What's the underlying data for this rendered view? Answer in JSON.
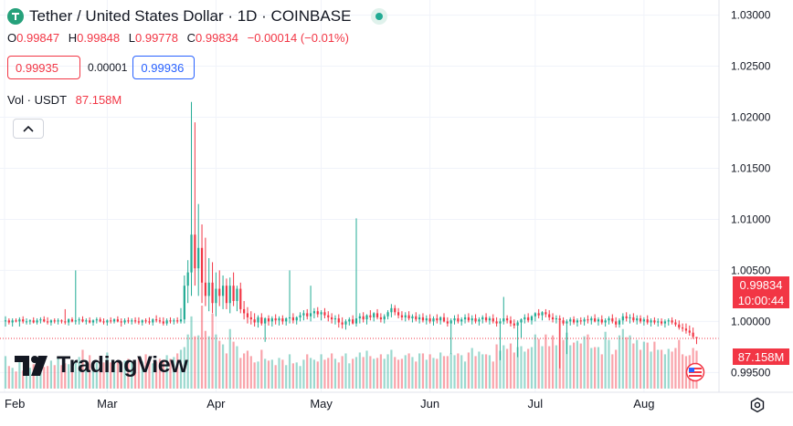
{
  "header": {
    "title": "Tether / United States Dollar · 1D · COINBASE",
    "ohlc": [
      {
        "key": "O",
        "value": "0.99847"
      },
      {
        "key": "H",
        "value": "0.99848"
      },
      {
        "key": "L",
        "value": "0.99778"
      },
      {
        "key": "C",
        "value": "0.99834"
      }
    ],
    "change": "−0.00014 (−0.01%)"
  },
  "quote": {
    "sell": "0.99935",
    "spread": "0.00001",
    "buy": "0.99936"
  },
  "volume_legend": {
    "label": "Vol · USDT",
    "value": "87.158M"
  },
  "badges": {
    "price": "0.99834",
    "countdown": "10:00:44",
    "volume": "87.158M"
  },
  "brand": {
    "name": "TradingView"
  },
  "icons": [
    "tether-logo-icon",
    "live-status-icon",
    "chevron-up-icon",
    "tradingview-logo-icon",
    "us-flag-icon",
    "settings-icon"
  ],
  "colors": {
    "up": "#22ab94",
    "down": "#f23645",
    "buy": "#2962ff",
    "text": "#131722"
  },
  "chart_data": {
    "type": "candlestick",
    "x_tick_labels": [
      "Feb",
      "Mar",
      "Apr",
      "May",
      "Jun",
      "Jul",
      "Aug"
    ],
    "y_tick_labels": [
      "1.03000",
      "1.02500",
      "1.02000",
      "1.01500",
      "1.01000",
      "1.00500",
      "1.00000",
      "0.99500"
    ],
    "ylim": [
      0.9925,
      1.0305
    ],
    "last_price": 0.99834,
    "grid": true,
    "candles": [
      [
        1.0,
        1.0005,
        0.9995,
        1.0001,
        36
      ],
      [
        1.0001,
        1.0003,
        0.9997,
        0.9999,
        25
      ],
      [
        0.9999,
        1.0003,
        0.9995,
        1.0001,
        23
      ],
      [
        1.0001,
        1.0003,
        0.9999,
        1.0,
        19
      ],
      [
        1.0,
        1.0004,
        0.9995,
        1.0002,
        31
      ],
      [
        1.0002,
        1.0005,
        0.9998,
        1.0,
        20
      ],
      [
        1.0,
        1.0003,
        0.9997,
        1.0,
        25
      ],
      [
        1.0,
        1.0002,
        0.9997,
        1.0001,
        23
      ],
      [
        1.0001,
        1.0004,
        0.9998,
        0.9999,
        27
      ],
      [
        0.9999,
        1.0003,
        0.9997,
        1.0001,
        26
      ],
      [
        1.0001,
        1.0004,
        0.9998,
        1.0002,
        28
      ],
      [
        1.0002,
        1.0005,
        0.9999,
        1.0,
        24
      ],
      [
        1.0,
        1.0004,
        0.9997,
        0.9999,
        25
      ],
      [
        0.9999,
        1.0002,
        0.9996,
        1.0001,
        31
      ],
      [
        1.0001,
        1.0003,
        0.9998,
        1.0,
        26
      ],
      [
        1.0,
        1.0003,
        0.9997,
        1.0001,
        34
      ],
      [
        1.0001,
        1.0002,
        0.9998,
        1.0,
        26
      ],
      [
        1.0,
        1.0012,
        0.9997,
        0.9999,
        28
      ],
      [
        0.9999,
        1.0003,
        0.9996,
        1.0002,
        27
      ],
      [
        1.0002,
        1.0004,
        0.9999,
        1.0,
        30
      ],
      [
        1.0,
        1.005,
        0.9997,
        1.0001,
        31
      ],
      [
        1.0001,
        1.0004,
        0.9997,
        1.0002,
        35
      ],
      [
        1.0002,
        1.0005,
        0.9999,
        1.0,
        43
      ],
      [
        1.0,
        1.0003,
        0.9997,
        1.0001,
        29
      ],
      [
        1.0001,
        1.0004,
        0.9998,
        0.9999,
        37
      ],
      [
        0.9999,
        1.0002,
        0.9996,
        1.0001,
        27
      ],
      [
        1.0001,
        1.0004,
        0.9998,
        1.0002,
        29
      ],
      [
        1.0002,
        1.0004,
        0.9999,
        1.0,
        36
      ],
      [
        1.0,
        1.0003,
        0.9997,
        0.9999,
        29
      ],
      [
        0.9999,
        1.0002,
        0.9996,
        1.0001,
        40
      ],
      [
        1.0001,
        1.0004,
        0.9998,
        1.0,
        29
      ],
      [
        1.0,
        1.0003,
        0.9998,
        1.0002,
        30
      ],
      [
        1.0002,
        1.0005,
        0.9999,
        1.0,
        31
      ],
      [
        1.0,
        1.0003,
        0.9995,
        0.9999,
        29
      ],
      [
        0.9999,
        1.0003,
        0.9997,
        1.0001,
        31
      ],
      [
        1.0001,
        1.0004,
        0.9998,
        1.0,
        33
      ],
      [
        1.0,
        1.0003,
        0.9997,
        1.0001,
        30
      ],
      [
        1.0001,
        1.0004,
        0.9998,
        1.0,
        29
      ],
      [
        1.0,
        1.0004,
        0.9997,
        0.9999,
        35
      ],
      [
        0.9999,
        1.0002,
        0.9996,
        1.0001,
        30
      ],
      [
        1.0001,
        1.0003,
        0.9998,
        1.0,
        38
      ],
      [
        1.0,
        1.0004,
        0.9997,
        0.9999,
        34
      ],
      [
        0.9999,
        1.0003,
        0.9996,
        1.0002,
        28
      ],
      [
        1.0002,
        1.0006,
        0.9999,
        1.0001,
        30
      ],
      [
        1.0001,
        1.0004,
        0.9998,
        1.0,
        33
      ],
      [
        1.0,
        1.0004,
        0.9996,
        0.9998,
        32
      ],
      [
        0.9998,
        1.0003,
        0.9996,
        1.0001,
        37
      ],
      [
        1.0001,
        1.0004,
        0.9998,
        1.0,
        33
      ],
      [
        1.0,
        1.0003,
        0.9997,
        1.0001,
        35
      ],
      [
        1.0001,
        1.0004,
        0.9998,
        1.0,
        39
      ],
      [
        1.0,
        1.0013,
        0.9998,
        1.0002,
        43
      ],
      [
        1.0002,
        1.0045,
        0.9998,
        1.0035,
        46
      ],
      [
        1.0035,
        1.006,
        1.0018,
        1.0048,
        60
      ],
      [
        1.0048,
        1.0215,
        1.0025,
        1.0085,
        80
      ],
      [
        1.0085,
        1.0195,
        1.0035,
        1.0052,
        58
      ],
      [
        1.0052,
        1.0115,
        1.0025,
        1.0072,
        59
      ],
      [
        1.0072,
        1.0095,
        1.0018,
        1.0038,
        92
      ],
      [
        1.0038,
        1.0082,
        1.0015,
        1.0025,
        64
      ],
      [
        1.0025,
        1.0062,
        1.001,
        1.0038,
        58
      ],
      [
        1.0038,
        1.0058,
        1.0008,
        1.0018,
        83
      ],
      [
        1.0018,
        1.0048,
        1.0005,
        1.0032,
        60
      ],
      [
        1.0032,
        1.005,
        1.0015,
        1.0025,
        53
      ],
      [
        1.0025,
        1.0045,
        1.0012,
        1.0035,
        49
      ],
      [
        1.0035,
        1.0042,
        1.0012,
        1.0018,
        39
      ],
      [
        1.0018,
        1.0043,
        1.0008,
        1.0035,
        66
      ],
      [
        1.0035,
        1.0048,
        1.0015,
        1.002,
        52
      ],
      [
        1.002,
        1.0035,
        1.001,
        1.0032,
        47
      ],
      [
        1.0032,
        1.0038,
        1.0008,
        1.0012,
        34
      ],
      [
        1.0012,
        1.002,
        1.0002,
        1.0008,
        39
      ],
      [
        1.0008,
        1.0014,
        0.9998,
        1.0004,
        42
      ],
      [
        1.0004,
        1.001,
        0.9997,
        1.0002,
        36
      ],
      [
        1.0002,
        1.0008,
        0.9995,
        0.9999,
        29
      ],
      [
        0.9999,
        1.0006,
        0.9994,
        1.0004,
        30
      ],
      [
        1.0004,
        1.0008,
        0.9996,
        0.9998,
        43
      ],
      [
        0.9998,
        1.0004,
        0.998,
        1.0003,
        33
      ],
      [
        1.0003,
        1.0006,
        0.9996,
        1.0,
        31
      ],
      [
        1.0,
        1.0005,
        0.9995,
        1.0003,
        32
      ],
      [
        1.0003,
        1.0007,
        0.9997,
        1.0001,
        26
      ],
      [
        1.0001,
        1.0005,
        0.9996,
        1.0003,
        34
      ],
      [
        1.0003,
        1.0006,
        0.9997,
        1.0,
        32
      ],
      [
        1.0,
        1.0004,
        0.9996,
        1.0003,
        26
      ],
      [
        1.0003,
        1.005,
        0.9998,
        1.0004,
        38
      ],
      [
        1.0004,
        1.0008,
        0.9998,
        1.0001,
        28
      ],
      [
        1.0001,
        1.0005,
        0.9997,
        1.0004,
        29
      ],
      [
        1.0004,
        1.0009,
        1.0,
        1.0006,
        25
      ],
      [
        1.0006,
        1.0011,
        1.0001,
        1.0008,
        32
      ],
      [
        1.0008,
        1.0012,
        1.0002,
        1.0005,
        38
      ],
      [
        1.0005,
        1.0035,
        1.0,
        1.0008,
        34
      ],
      [
        1.0008,
        1.0013,
        1.0003,
        1.001,
        32
      ],
      [
        1.001,
        1.0014,
        1.0004,
        1.0007,
        30
      ],
      [
        1.0007,
        1.0011,
        1.0001,
        1.0009,
        38
      ],
      [
        1.0009,
        1.0013,
        1.0003,
        1.0006,
        32
      ],
      [
        1.0006,
        1.001,
        1.0,
        1.0004,
        34
      ],
      [
        1.0004,
        1.0008,
        0.9998,
        1.0002,
        39
      ],
      [
        1.0002,
        1.0006,
        0.9997,
        1.0003,
        33
      ],
      [
        1.0003,
        1.0007,
        0.9994,
        0.9999,
        29
      ],
      [
        0.9999,
        1.0004,
        0.9993,
        0.9997,
        36
      ],
      [
        0.9997,
        1.0002,
        0.9992,
        1.0,
        39
      ],
      [
        1.0,
        1.0004,
        0.9996,
        1.0002,
        28
      ],
      [
        1.0002,
        1.0006,
        0.9997,
        0.9998,
        33
      ],
      [
        0.9998,
        1.0101,
        0.9995,
        1.0003,
        35
      ],
      [
        1.0003,
        1.0008,
        0.9998,
        1.0005,
        40
      ],
      [
        1.0005,
        1.0009,
        0.9999,
        1.0002,
        35
      ],
      [
        1.0002,
        1.0007,
        0.9997,
        1.0006,
        42
      ],
      [
        1.0006,
        1.0011,
        1.0001,
        1.0004,
        36
      ],
      [
        1.0004,
        1.0009,
        1.0,
        1.0008,
        33
      ],
      [
        1.0008,
        1.0012,
        1.0002,
        1.0004,
        34
      ],
      [
        1.0004,
        1.0008,
        0.9999,
        1.0002,
        38
      ],
      [
        1.0002,
        1.0007,
        0.9998,
        1.0005,
        33
      ],
      [
        1.0005,
        1.0011,
        1.0002,
        1.0009,
        38
      ],
      [
        1.0009,
        1.0017,
        1.0004,
        1.0013,
        43
      ],
      [
        1.0013,
        1.0016,
        1.0006,
        1.0009,
        35
      ],
      [
        1.0009,
        1.0013,
        1.0003,
        1.0006,
        32
      ],
      [
        1.0006,
        1.001,
        1.0001,
        1.0004,
        33
      ],
      [
        1.0004,
        1.0009,
        1.0,
        1.0006,
        37
      ],
      [
        1.0006,
        1.001,
        1.0001,
        1.0003,
        39
      ],
      [
        1.0003,
        1.0007,
        0.9999,
        1.0005,
        35
      ],
      [
        1.0005,
        1.0009,
        1.0,
        1.0002,
        30
      ],
      [
        1.0002,
        1.0007,
        0.9998,
        1.0004,
        39
      ],
      [
        1.0004,
        1.0008,
        0.9999,
        1.0001,
        39
      ],
      [
        1.0001,
        1.0006,
        0.9997,
        1.0003,
        32
      ],
      [
        1.0003,
        1.0007,
        0.9998,
        1.0,
        38
      ],
      [
        1.0,
        1.0005,
        0.9996,
        1.0003,
        34
      ],
      [
        1.0003,
        1.0007,
        0.9998,
        1.0001,
        33
      ],
      [
        1.0001,
        1.0005,
        0.9997,
        1.0004,
        40
      ],
      [
        1.0004,
        1.0008,
        0.9999,
        1.0,
        36
      ],
      [
        1.0,
        1.0004,
        0.9995,
        0.9998,
        36
      ],
      [
        0.9998,
        1.0003,
        0.9968,
        1.0001,
        39
      ],
      [
        1.0001,
        1.0006,
        0.9997,
        1.0003,
        37
      ],
      [
        1.0003,
        1.0007,
        0.9998,
        1.0,
        39
      ],
      [
        1.0,
        1.0004,
        0.9996,
        1.0002,
        37
      ],
      [
        1.0002,
        1.0007,
        0.9998,
        1.0004,
        30
      ],
      [
        1.0004,
        1.0008,
        0.9999,
        1.0001,
        40
      ],
      [
        1.0001,
        1.0006,
        0.9997,
        1.0003,
        45
      ],
      [
        1.0003,
        1.0007,
        0.9998,
        1.0,
        36
      ],
      [
        1.0,
        1.0004,
        0.9996,
        1.0002,
        41
      ],
      [
        1.0002,
        1.0006,
        0.9998,
        1.0004,
        38
      ],
      [
        1.0004,
        1.0008,
        0.9999,
        1.0001,
        38
      ],
      [
        1.0001,
        1.0005,
        0.9997,
        1.0003,
        37
      ],
      [
        1.0003,
        1.0007,
        0.9998,
        1.0,
        30
      ],
      [
        1.0,
        1.0004,
        0.9995,
        0.9998,
        49
      ],
      [
        0.9998,
        1.0003,
        0.9962,
        1.0,
        42
      ],
      [
        1.0,
        1.0024,
        0.9997,
        1.0003,
        48
      ],
      [
        1.0003,
        1.0006,
        0.9998,
        1.0001,
        44
      ],
      [
        1.0001,
        1.0005,
        0.9995,
        0.9998,
        50
      ],
      [
        0.9998,
        1.0002,
        0.9993,
        0.9996,
        40
      ],
      [
        0.9996,
        1.0001,
        0.9965,
        0.9999,
        46
      ],
      [
        0.9999,
        1.0003,
        0.9984,
        1.0002,
        47
      ],
      [
        1.0002,
        1.0007,
        0.9998,
        1.0004,
        41
      ],
      [
        1.0004,
        1.0008,
        0.9999,
        1.0001,
        44
      ],
      [
        1.0001,
        1.0006,
        0.9997,
        1.0005,
        46
      ],
      [
        1.0005,
        1.0009,
        1.0,
        1.0008,
        60
      ],
      [
        1.0008,
        1.0012,
        1.0003,
        1.0006,
        55
      ],
      [
        1.0006,
        1.001,
        1.0001,
        1.0009,
        47
      ],
      [
        1.0009,
        1.0012,
        1.0004,
        1.0007,
        60
      ],
      [
        1.0007,
        1.0011,
        1.0001,
        1.0004,
        47
      ],
      [
        1.0004,
        1.0008,
        0.9999,
        1.0002,
        59
      ],
      [
        1.0002,
        1.0006,
        0.9998,
        1.0003,
        48
      ],
      [
        1.0003,
        1.0006,
        0.9954,
        1.0001,
        75
      ],
      [
        1.0001,
        1.0004,
        0.9996,
        0.9998,
        54
      ],
      [
        0.9998,
        1.0002,
        0.9968,
        1.0,
        62
      ],
      [
        1.0,
        1.0004,
        0.9996,
        1.0002,
        48
      ],
      [
        1.0002,
        1.0005,
        0.9997,
        0.9999,
        51
      ],
      [
        0.9999,
        1.0003,
        0.9995,
        1.0001,
        53
      ],
      [
        1.0001,
        1.0004,
        0.9997,
        1.0,
        50
      ],
      [
        1.0,
        1.0004,
        0.9996,
        1.0002,
        58
      ],
      [
        1.0002,
        1.0006,
        0.9998,
        1.0001,
        60
      ],
      [
        1.0001,
        1.0005,
        0.9997,
        1.0003,
        45
      ],
      [
        1.0003,
        1.0007,
        0.9999,
        1.0,
        46
      ],
      [
        1.0,
        1.0004,
        0.9996,
        1.0002,
        46
      ],
      [
        1.0002,
        1.0006,
        0.9997,
        0.9999,
        38
      ],
      [
        0.9999,
        1.0003,
        0.9995,
        1.0001,
        63
      ],
      [
        1.0001,
        1.0005,
        0.9997,
        1.0003,
        54
      ],
      [
        1.0003,
        1.0007,
        0.9998,
        1.0,
        38
      ],
      [
        1.0,
        1.0004,
        0.9994,
        0.9997,
        43
      ],
      [
        0.9997,
        1.0003,
        0.9994,
        1.0001,
        59
      ],
      [
        1.0001,
        1.0008,
        0.9997,
        1.0005,
        66
      ],
      [
        1.0005,
        1.0009,
        1.0,
        1.0003,
        57
      ],
      [
        1.0003,
        1.0007,
        0.9998,
        1.0004,
        59
      ],
      [
        1.0004,
        1.0008,
        0.9999,
        1.0001,
        50
      ],
      [
        1.0001,
        1.0006,
        0.9997,
        1.0003,
        54
      ],
      [
        1.0003,
        1.0006,
        0.9998,
        1.0,
        43
      ],
      [
        1.0,
        1.0004,
        0.9996,
        1.0002,
        52
      ],
      [
        1.0002,
        1.0006,
        0.9997,
        0.9999,
        51
      ],
      [
        0.9999,
        1.0003,
        0.9995,
        1.0001,
        41
      ],
      [
        1.0001,
        1.0004,
        0.9997,
        0.9999,
        52
      ],
      [
        0.9999,
        1.0003,
        0.9995,
        1.0,
        43
      ],
      [
        1.0,
        1.0003,
        0.9996,
        0.9998,
        43
      ],
      [
        0.9998,
        1.0002,
        0.9994,
        1.0,
        38
      ],
      [
        1.0,
        1.0003,
        0.9996,
        1.0001,
        44
      ],
      [
        1.0001,
        1.0004,
        0.9997,
        0.9999,
        41
      ],
      [
        0.9999,
        1.0002,
        0.9995,
        0.9997,
        45
      ],
      [
        0.9997,
        1.0001,
        0.9992,
        0.9994,
        54
      ],
      [
        0.9994,
        0.9998,
        0.999,
        0.9993,
        38
      ],
      [
        0.9993,
        0.9998,
        0.9988,
        0.9991,
        36
      ],
      [
        0.9991,
        0.9996,
        0.9986,
        0.9989,
        37
      ],
      [
        0.9989,
        0.9994,
        0.9983,
        0.9985,
        45
      ],
      [
        0.99847,
        0.99848,
        0.99778,
        0.99834,
        42
      ]
    ]
  }
}
